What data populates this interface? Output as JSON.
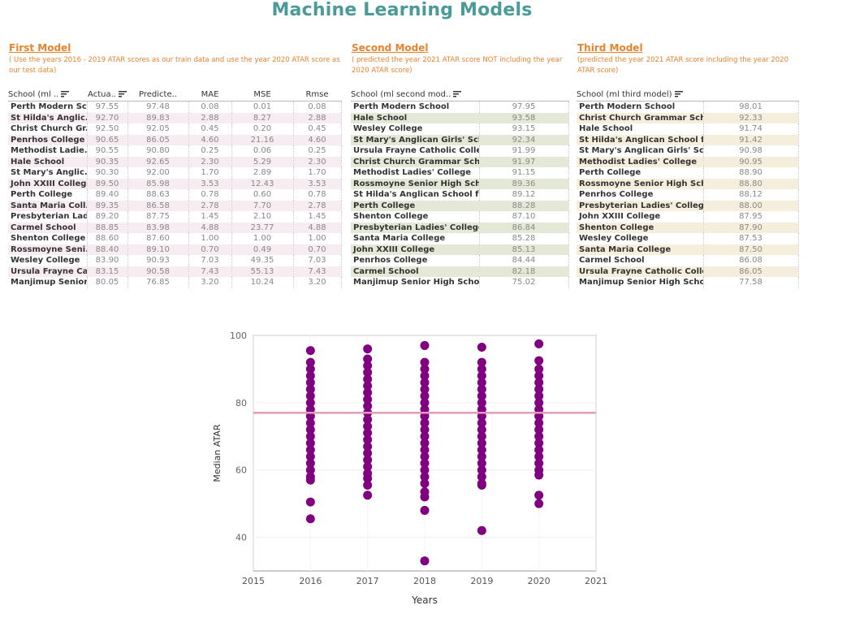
{
  "page_title": "Machine Learning Models",
  "first_model": {
    "title": "First Model",
    "subtitle": "( Use the years 2016 - 2019 ATAR scores as our train data and use the year 2020 ATAR score as our test data)",
    "headers": {
      "school": "School (ml ..",
      "actual": "Actua..",
      "predicted": "Predicte..",
      "mae": "MAE",
      "mse": "MSE",
      "rmse": "Rmse"
    },
    "rows": [
      {
        "school": "Perth Modern Sc..",
        "actual": "97.55",
        "predicted": "97.48",
        "mae": "0.08",
        "mse": "0.01",
        "rmse": "0.08"
      },
      {
        "school": "St Hilda's Anglic..",
        "actual": "92.70",
        "predicted": "89.83",
        "mae": "2.88",
        "mse": "8.27",
        "rmse": "2.88"
      },
      {
        "school": "Christ Church Gr..",
        "actual": "92.50",
        "predicted": "92.05",
        "mae": "0.45",
        "mse": "0.20",
        "rmse": "0.45"
      },
      {
        "school": "Penrhos College",
        "actual": "90.65",
        "predicted": "86.05",
        "mae": "4.60",
        "mse": "21.16",
        "rmse": "4.60"
      },
      {
        "school": "Methodist Ladie..",
        "actual": "90.55",
        "predicted": "90.80",
        "mae": "0.25",
        "mse": "0.06",
        "rmse": "0.25"
      },
      {
        "school": "Hale School",
        "actual": "90.35",
        "predicted": "92.65",
        "mae": "2.30",
        "mse": "5.29",
        "rmse": "2.30"
      },
      {
        "school": "St Mary's Anglic..",
        "actual": "90.30",
        "predicted": "92.00",
        "mae": "1.70",
        "mse": "2.89",
        "rmse": "1.70"
      },
      {
        "school": "John XXIII College",
        "actual": "89.50",
        "predicted": "85.98",
        "mae": "3.53",
        "mse": "12.43",
        "rmse": "3.53"
      },
      {
        "school": "Perth College",
        "actual": "89.40",
        "predicted": "88.63",
        "mae": "0.78",
        "mse": "0.60",
        "rmse": "0.78"
      },
      {
        "school": "Santa Maria Coll..",
        "actual": "89.35",
        "predicted": "86.58",
        "mae": "2.78",
        "mse": "7.70",
        "rmse": "2.78"
      },
      {
        "school": "Presbyterian Lad..",
        "actual": "89.20",
        "predicted": "87.75",
        "mae": "1.45",
        "mse": "2.10",
        "rmse": "1.45"
      },
      {
        "school": "Carmel School",
        "actual": "88.85",
        "predicted": "83.98",
        "mae": "4.88",
        "mse": "23.77",
        "rmse": "4.88"
      },
      {
        "school": "Shenton College",
        "actual": "88.60",
        "predicted": "87.60",
        "mae": "1.00",
        "mse": "1.00",
        "rmse": "1.00"
      },
      {
        "school": "Rossmoyne Seni..",
        "actual": "88.40",
        "predicted": "89.10",
        "mae": "0.70",
        "mse": "0.49",
        "rmse": "0.70"
      },
      {
        "school": "Wesley College",
        "actual": "83.90",
        "predicted": "90.93",
        "mae": "7.03",
        "mse": "49.35",
        "rmse": "7.03"
      },
      {
        "school": "Ursula Frayne Ca..",
        "actual": "83.15",
        "predicted": "90.58",
        "mae": "7.43",
        "mse": "55.13",
        "rmse": "7.43"
      },
      {
        "school": "Manjimup Senior..",
        "actual": "80.05",
        "predicted": "76.85",
        "mae": "3.20",
        "mse": "10.24",
        "rmse": "3.20"
      }
    ]
  },
  "second_model": {
    "title": "Second Model",
    "subtitle": "( predicted the year 2021 ATAR score NOT including the year 2020 ATAR score)",
    "header": "School (ml second mod..",
    "rows": [
      {
        "school": "Perth Modern School",
        "score": "97.95"
      },
      {
        "school": "Hale School",
        "score": "93.58"
      },
      {
        "school": "Wesley College",
        "score": "93.15"
      },
      {
        "school": "St Mary's Anglican Girls' Sch..",
        "score": "92.34"
      },
      {
        "school": "Ursula Frayne Catholic Colle..",
        "score": "91.99"
      },
      {
        "school": "Christ Church Grammar Scho..",
        "score": "91.97"
      },
      {
        "school": "Methodist Ladies' College",
        "score": "91.15"
      },
      {
        "school": "Rossmoyne Senior High Sch..",
        "score": "89.36"
      },
      {
        "school": "St Hilda's Anglican School fo..",
        "score": "89.12"
      },
      {
        "school": "Perth College",
        "score": "88.28"
      },
      {
        "school": "Shenton College",
        "score": "87.10"
      },
      {
        "school": "Presbyterian Ladies' College",
        "score": "86.84"
      },
      {
        "school": "Santa Maria College",
        "score": "85.28"
      },
      {
        "school": "John XXIII College",
        "score": "85.13"
      },
      {
        "school": "Penrhos College",
        "score": "84.44"
      },
      {
        "school": "Carmel School",
        "score": "82.18"
      },
      {
        "school": "Manjimup Senior High School",
        "score": "75.02"
      }
    ]
  },
  "third_model": {
    "title": "Third Model",
    "subtitle": "(predicted the year 2021 ATAR score including the year 2020 ATAR score)",
    "header": "School (ml third model)",
    "rows": [
      {
        "school": "Perth Modern School",
        "score": "98.01"
      },
      {
        "school": "Christ Church Grammar Scho..",
        "score": "92.33"
      },
      {
        "school": "Hale School",
        "score": "91.74"
      },
      {
        "school": "St Hilda's Anglican School fo..",
        "score": "91.42"
      },
      {
        "school": "St Mary's Anglican Girls' Sch..",
        "score": "90.98"
      },
      {
        "school": "Methodist Ladies' College",
        "score": "90.95"
      },
      {
        "school": "Perth College",
        "score": "88.90"
      },
      {
        "school": "Rossmoyne Senior High Sch..",
        "score": "88.80"
      },
      {
        "school": "Penrhos College",
        "score": "88.12"
      },
      {
        "school": "Presbyterian Ladies' College",
        "score": "88.00"
      },
      {
        "school": "John XXIII College",
        "score": "87.95"
      },
      {
        "school": "Shenton College",
        "score": "87.90"
      },
      {
        "school": "Wesley College",
        "score": "87.53"
      },
      {
        "school": "Santa Maria College",
        "score": "87.50"
      },
      {
        "school": "Carmel School",
        "score": "86.08"
      },
      {
        "school": "Ursula Frayne Catholic Colle..",
        "score": "86.05"
      },
      {
        "school": "Manjimup Senior High School",
        "score": "77.58"
      }
    ]
  },
  "chart_data": {
    "type": "scatter",
    "xlabel": "Years",
    "ylabel": "Median ATAR",
    "xlim": [
      2015,
      2021
    ],
    "ylim": [
      30,
      100
    ],
    "xticks": [
      2015,
      2016,
      2017,
      2018,
      2019,
      2020,
      2021
    ],
    "yticks": [
      40,
      60,
      80,
      100
    ],
    "reference_line": 77,
    "point_color": "#800080",
    "reference_color": "#e59ab5",
    "series": [
      {
        "x": 2016,
        "values": [
          95.5,
          92,
          90,
          88,
          86,
          84,
          82,
          80,
          78,
          76,
          74,
          72,
          70,
          68,
          66,
          64,
          62,
          60,
          58,
          57,
          50.5,
          45.5
        ]
      },
      {
        "x": 2017,
        "values": [
          96,
          93,
          91,
          89,
          87,
          85,
          83,
          81,
          79,
          77,
          75,
          73,
          71,
          69,
          67,
          65,
          63,
          61,
          59,
          57.5,
          55.5,
          52.5
        ]
      },
      {
        "x": 2018,
        "values": [
          97,
          92,
          90,
          88,
          86,
          84,
          82,
          80,
          78,
          76,
          74,
          72,
          70,
          68,
          66,
          64,
          62,
          60,
          58,
          56,
          53.5,
          52,
          48,
          33
        ]
      },
      {
        "x": 2019,
        "values": [
          96.5,
          92,
          90,
          88,
          86,
          84,
          82,
          80,
          78,
          76,
          74,
          72,
          70,
          68,
          66,
          64,
          62,
          60,
          58,
          56,
          55.5,
          42
        ]
      },
      {
        "x": 2020,
        "values": [
          97.5,
          92.5,
          90,
          88,
          86,
          84,
          82,
          80,
          78,
          76,
          74,
          72,
          70,
          68,
          66,
          64,
          62,
          60,
          58.5,
          52.5,
          50
        ]
      }
    ]
  }
}
